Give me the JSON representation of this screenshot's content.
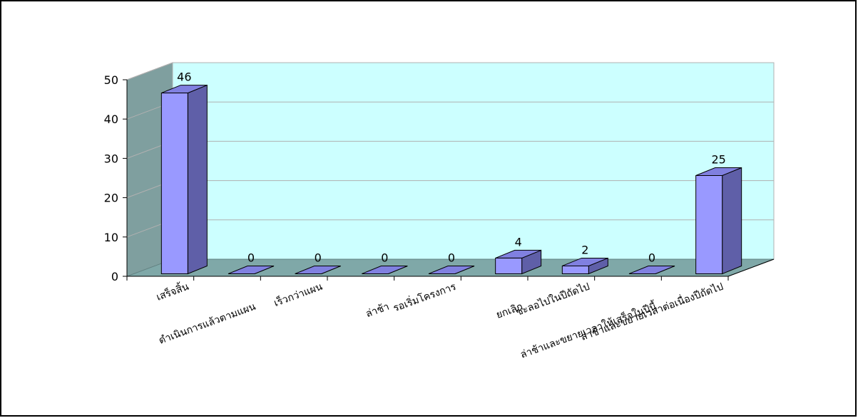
{
  "chart_data": {
    "type": "bar",
    "style": "3d-column",
    "title": "",
    "xlabel": "",
    "ylabel": "",
    "ylim": [
      0,
      50
    ],
    "yticks": [
      "0",
      "10",
      "20",
      "30",
      "40",
      "50"
    ],
    "grid": true,
    "legend": "none",
    "categories": [
      "เสร็จสิ้น",
      "ดำเนินการแล้วตามแผน",
      "เร็วกว่าแผน",
      "ล่าช้า",
      "รอเริ่มโครงการ",
      "ยกเลิก",
      "ชะลอไปในปีถัดไป",
      "ล่าช้าและขยายเวลาให้เสร็จในปีนี้",
      "ล่าช้าและขยายเวลาต่อเนื่องปีถัดไป"
    ],
    "values": [
      46,
      0,
      0,
      0,
      0,
      4,
      2,
      0,
      25
    ],
    "data_labels": [
      "46",
      "0",
      "0",
      "0",
      "0",
      "4",
      "2",
      "0",
      "25"
    ],
    "colors": {
      "bar_front": "#9999ff",
      "bar_side": "#5f5fa8",
      "bar_top": "#8080e0",
      "back_wall": "#ccffff",
      "side_wall": "#7f9f9f",
      "floor": "#7fa8a8",
      "gridline": "#b0b0b0",
      "outline": "#000000"
    }
  }
}
